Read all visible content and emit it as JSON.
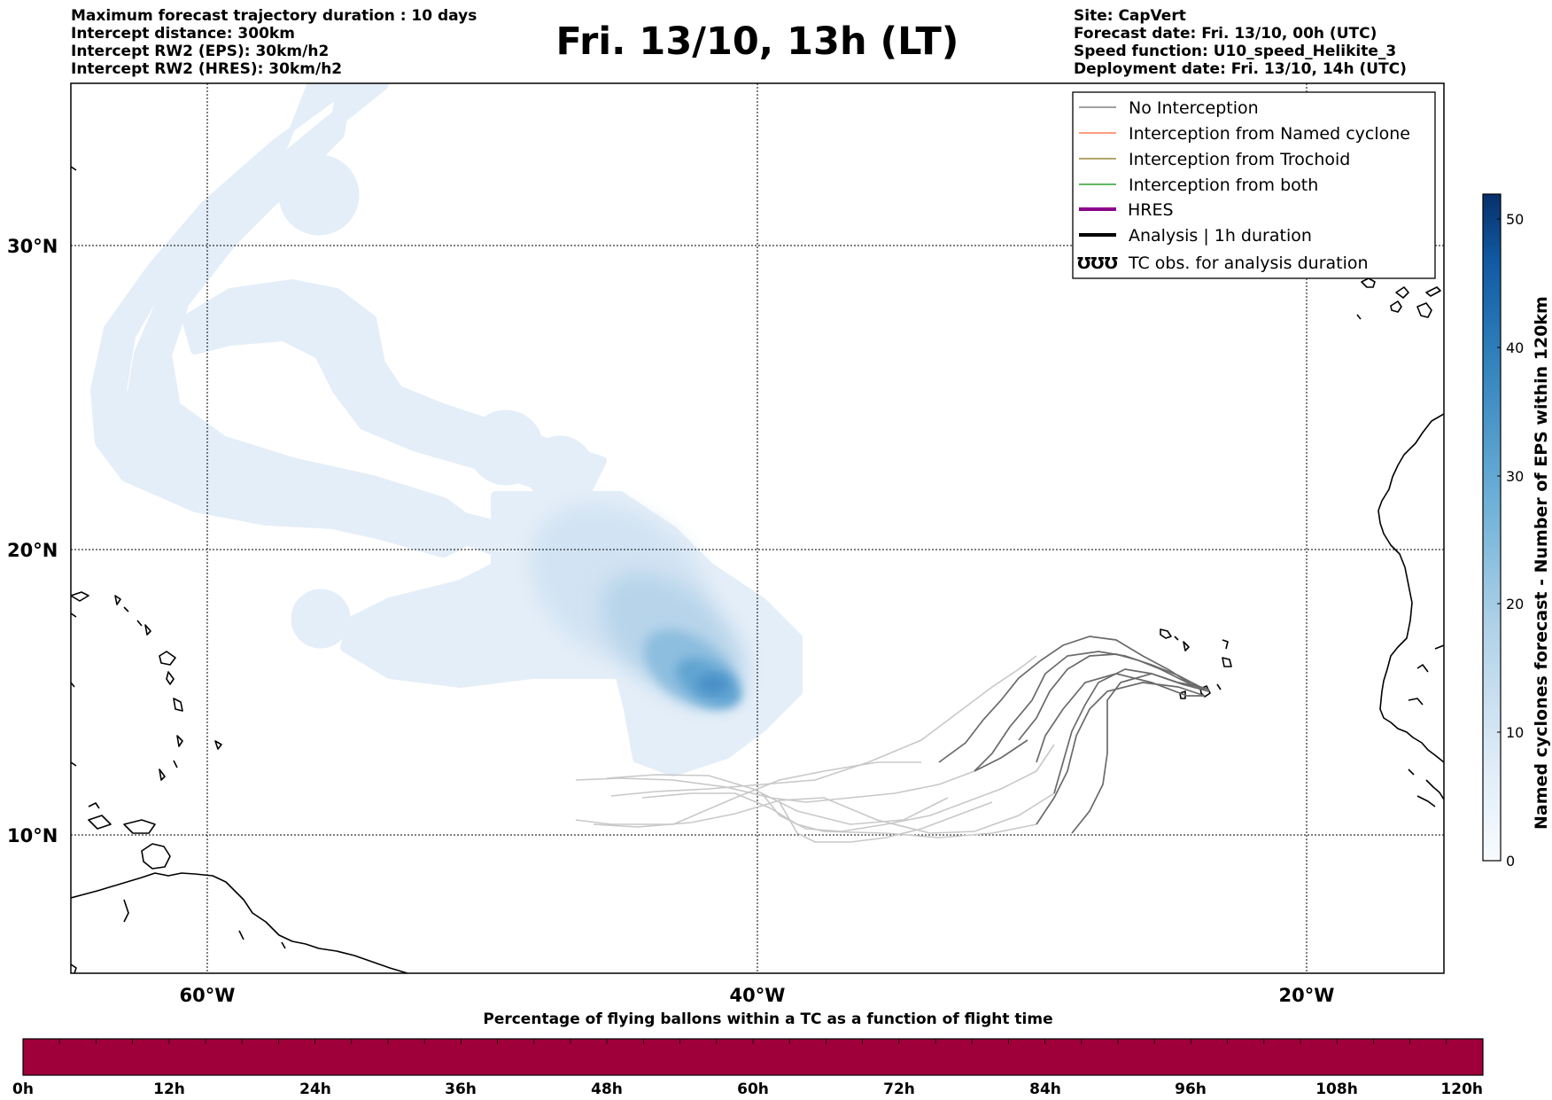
{
  "title": "Fri. 13/10, 13h (LT)",
  "info_left": [
    "Maximum forecast trajectory duration : 10 days",
    "Intercept distance: 300km",
    "Intercept RW2 (EPS):  30km/h2",
    "Intercept RW2 (HRES): 30km/h2"
  ],
  "info_right": [
    "Site: CapVert",
    "Forecast date: Fri. 13/10, 00h (UTC)",
    "Speed function: U10_speed_Helikite_3",
    "Deployment date: Fri. 13/10, 14h (UTC)"
  ],
  "map": {
    "lat_labels": [
      "30°N",
      "20°N",
      "10°N"
    ],
    "lon_labels": [
      "60°W",
      "40°W",
      "20°W"
    ]
  },
  "legend": [
    {
      "label": "No Interception",
      "color": "#808080",
      "style": "thin"
    },
    {
      "label": "Interception from Named cyclone",
      "color": "#ff7f50",
      "style": "thin"
    },
    {
      "label": "Interception from Trochoid",
      "color": "#9a8a3a",
      "style": "thin"
    },
    {
      "label": "Interception from both",
      "color": "#2ca02c",
      "style": "thin"
    },
    {
      "label": "HRES",
      "color": "#8b008b",
      "style": "thick"
    },
    {
      "label": "Analysis | 1h duration",
      "color": "#000000",
      "style": "thick"
    },
    {
      "label": "TC obs. for analysis duration",
      "color": "#000000",
      "style": "symbol",
      "symbol": "ƱƱƱ"
    }
  ],
  "colorbar": {
    "title": "Named cyclones forecast - Number of EPS within 120km",
    "ticks": [
      "0",
      "10",
      "20",
      "30",
      "40",
      "50"
    ],
    "low_color": "#deebf7",
    "high_color": "#08306b"
  },
  "time_bar": {
    "title": "Percentage of flying ballons within a TC as a function of flight time",
    "color": "#a0003a",
    "ticks": [
      "0h",
      "12h",
      "24h",
      "36h",
      "48h",
      "60h",
      "72h",
      "84h",
      "96h",
      "108h",
      "120h"
    ]
  }
}
